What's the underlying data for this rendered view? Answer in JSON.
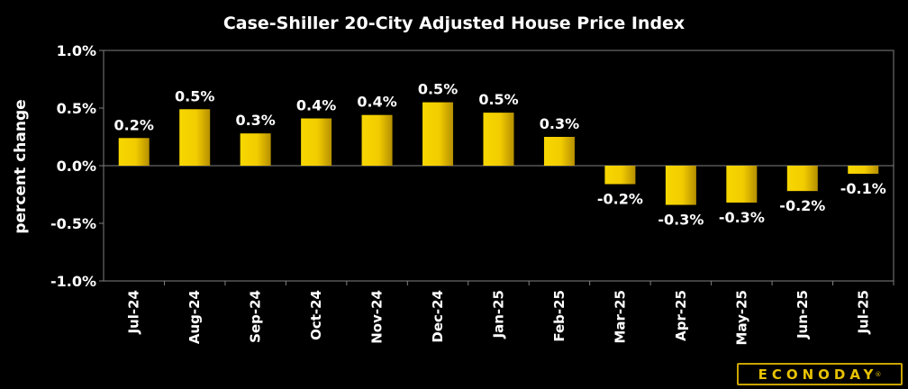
{
  "chart_data": {
    "type": "bar",
    "title": "Case-Shiller 20-City Adjusted House Price Index",
    "ylabel": "percent change",
    "xlabel": "",
    "ylim": [
      -1.0,
      1.0
    ],
    "yticks": [
      "1.0%",
      "0.5%",
      "0.0%",
      "-0.5%",
      "-1.0%"
    ],
    "ytick_values": [
      1.0,
      0.5,
      0.0,
      -0.5,
      -1.0
    ],
    "categories": [
      "Jul-24",
      "Aug-24",
      "Sep-24",
      "Oct-24",
      "Nov-24",
      "Dec-24",
      "Jan-25",
      "Feb-25",
      "Mar-25",
      "Apr-25",
      "May-25",
      "Jun-25",
      "Jul-25"
    ],
    "values": [
      0.24,
      0.49,
      0.28,
      0.41,
      0.44,
      0.55,
      0.46,
      0.25,
      -0.16,
      -0.34,
      -0.32,
      -0.22,
      -0.07
    ],
    "data_labels": [
      "0.2%",
      "0.5%",
      "0.3%",
      "0.4%",
      "0.4%",
      "0.5%",
      "0.5%",
      "0.3%",
      "-0.2%",
      "-0.3%",
      "-0.3%",
      "-0.2%",
      "-0.1%"
    ],
    "grid": false,
    "legend": "none",
    "bar_color_top": "#f7d700",
    "bar_color_bottom": "#b58f00"
  },
  "brand": {
    "logo_text": "ECONODAY",
    "logo_mark": "®",
    "logo_color": "#e8c200"
  }
}
